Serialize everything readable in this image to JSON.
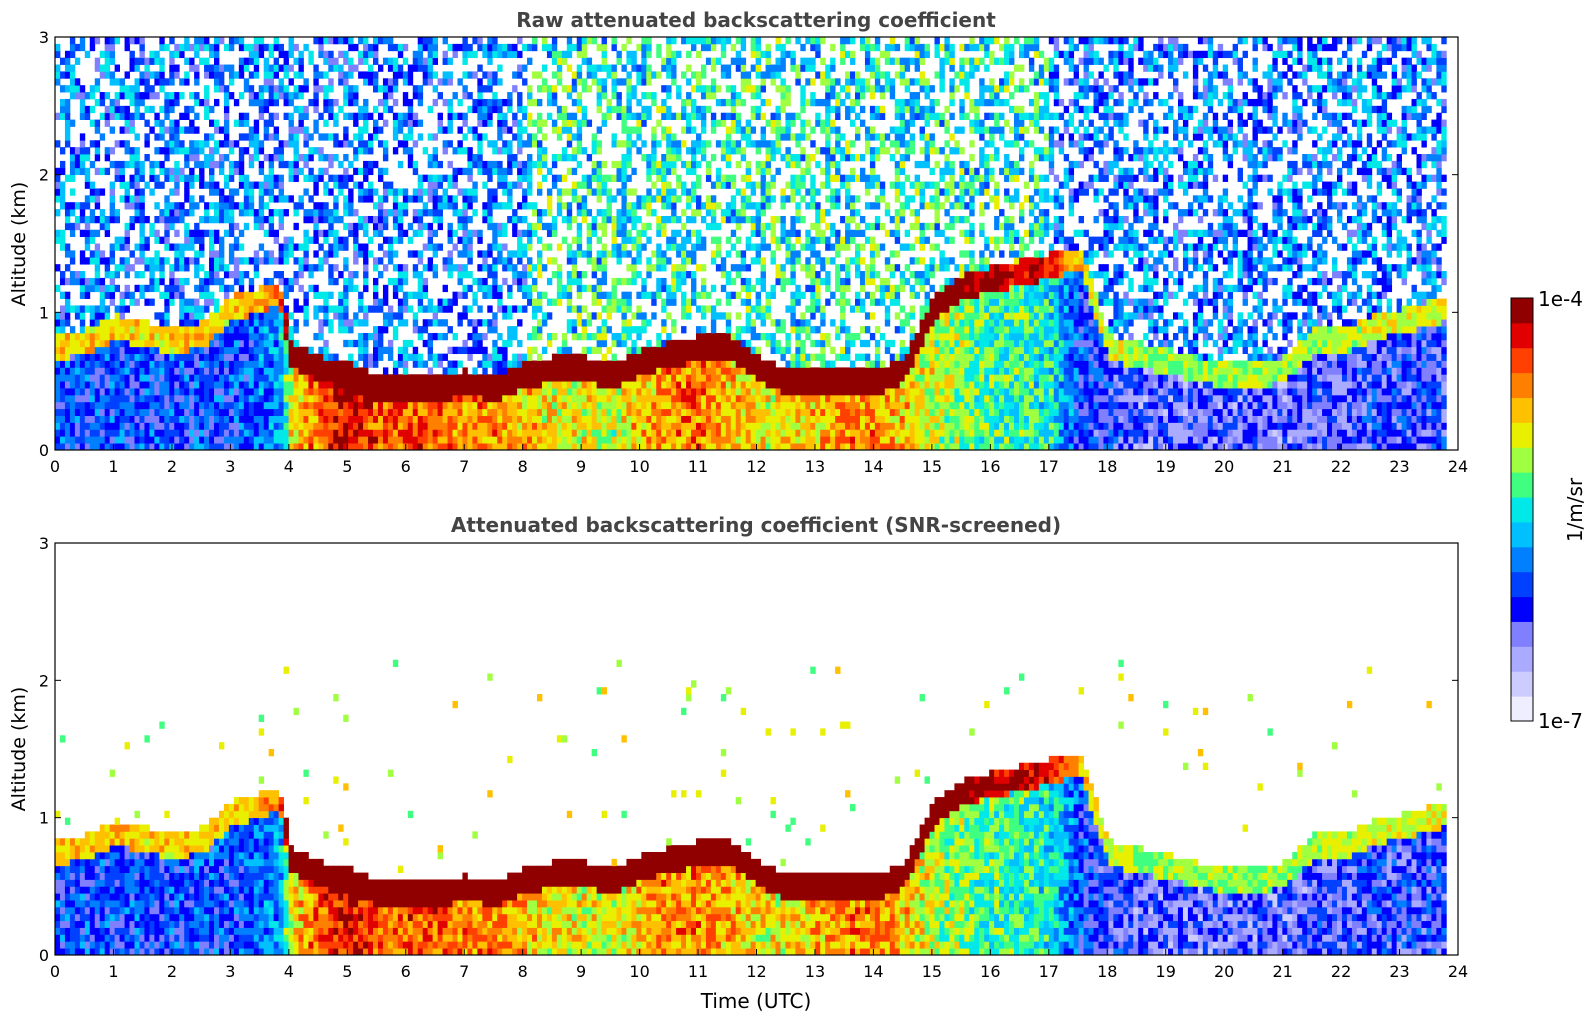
{
  "chart_data": [
    {
      "type": "heatmap",
      "title": "Raw attenuated backscattering coefficient",
      "xlabel": "",
      "ylabel": "Altitude (km)",
      "xlim": [
        0,
        24
      ],
      "ylim": [
        0,
        3
      ],
      "xticks": [
        "0",
        "1",
        "2",
        "3",
        "4",
        "5",
        "6",
        "7",
        "8",
        "9",
        "10",
        "11",
        "12",
        "13",
        "14",
        "15",
        "16",
        "17",
        "18",
        "19",
        "20",
        "21",
        "22",
        "23",
        "24"
      ],
      "yticks": [
        "0",
        "1",
        "2",
        "3"
      ],
      "snr_screened": false
    },
    {
      "type": "heatmap",
      "title": "Attenuated backscattering coefficient (SNR-screened)",
      "xlabel": "Time (UTC)",
      "ylabel": "Altitude (km)",
      "xlim": [
        0,
        24
      ],
      "ylim": [
        0,
        3
      ],
      "xticks": [
        "0",
        "1",
        "2",
        "3",
        "4",
        "5",
        "6",
        "7",
        "8",
        "9",
        "10",
        "11",
        "12",
        "13",
        "14",
        "15",
        "16",
        "17",
        "18",
        "19",
        "20",
        "21",
        "22",
        "23",
        "24"
      ],
      "yticks": [
        "0",
        "1",
        "2",
        "3"
      ],
      "snr_screened": true
    }
  ],
  "colorbar": {
    "max_label": "1e-4",
    "min_label": "1e-7",
    "unit_label": "1/m/sr",
    "scale": "log",
    "colors": [
      "#eeeeff",
      "#ccccff",
      "#aaaaff",
      "#8080ff",
      "#0000ff",
      "#0040ff",
      "#0080ff",
      "#00c0ff",
      "#00e8e8",
      "#40ff80",
      "#a0ff40",
      "#e8f000",
      "#ffc000",
      "#ff8000",
      "#ff4000",
      "#e00000",
      "#900000"
    ]
  },
  "profile": {
    "description_hours": [
      0,
      0.5,
      1,
      1.5,
      2,
      2.5,
      3,
      3.5,
      3.8,
      4,
      4.5,
      5,
      5.3,
      5.5,
      6,
      6.5,
      7,
      7.5,
      8,
      8.5,
      9,
      9.5,
      10,
      10.5,
      11,
      11.5,
      12,
      12.5,
      13,
      13.5,
      14,
      14.5,
      15,
      15.5,
      16,
      16.5,
      17,
      17.5,
      18,
      18.5,
      19,
      19.5,
      20,
      20.5,
      21,
      21.5,
      22,
      22.5,
      23,
      23.5,
      23.8
    ],
    "pbl_top_km": [
      0.75,
      0.8,
      0.9,
      0.85,
      0.8,
      0.85,
      1.05,
      1.1,
      1.15,
      0.7,
      0.6,
      0.55,
      0.5,
      0.45,
      0.45,
      0.45,
      0.5,
      0.45,
      0.55,
      0.6,
      0.6,
      0.55,
      0.65,
      0.7,
      0.75,
      0.75,
      0.6,
      0.5,
      0.5,
      0.5,
      0.5,
      0.6,
      1.05,
      1.2,
      1.25,
      1.3,
      1.35,
      1.4,
      0.75,
      0.7,
      0.65,
      0.6,
      0.55,
      0.55,
      0.6,
      0.8,
      0.8,
      0.9,
      0.95,
      1.0,
      1.05
    ],
    "intensity": [
      0.3,
      0.3,
      0.3,
      0.3,
      0.3,
      0.3,
      0.3,
      0.35,
      0.4,
      0.7,
      0.85,
      0.95,
      0.9,
      0.85,
      0.85,
      0.85,
      0.8,
      0.8,
      0.75,
      0.7,
      0.7,
      0.65,
      0.75,
      0.8,
      0.8,
      0.75,
      0.7,
      0.7,
      0.75,
      0.8,
      0.8,
      0.75,
      0.65,
      0.6,
      0.55,
      0.55,
      0.5,
      0.3,
      0.25,
      0.2,
      0.2,
      0.2,
      0.2,
      0.2,
      0.2,
      0.22,
      0.22,
      0.25,
      0.25,
      0.25,
      0.25
    ]
  }
}
